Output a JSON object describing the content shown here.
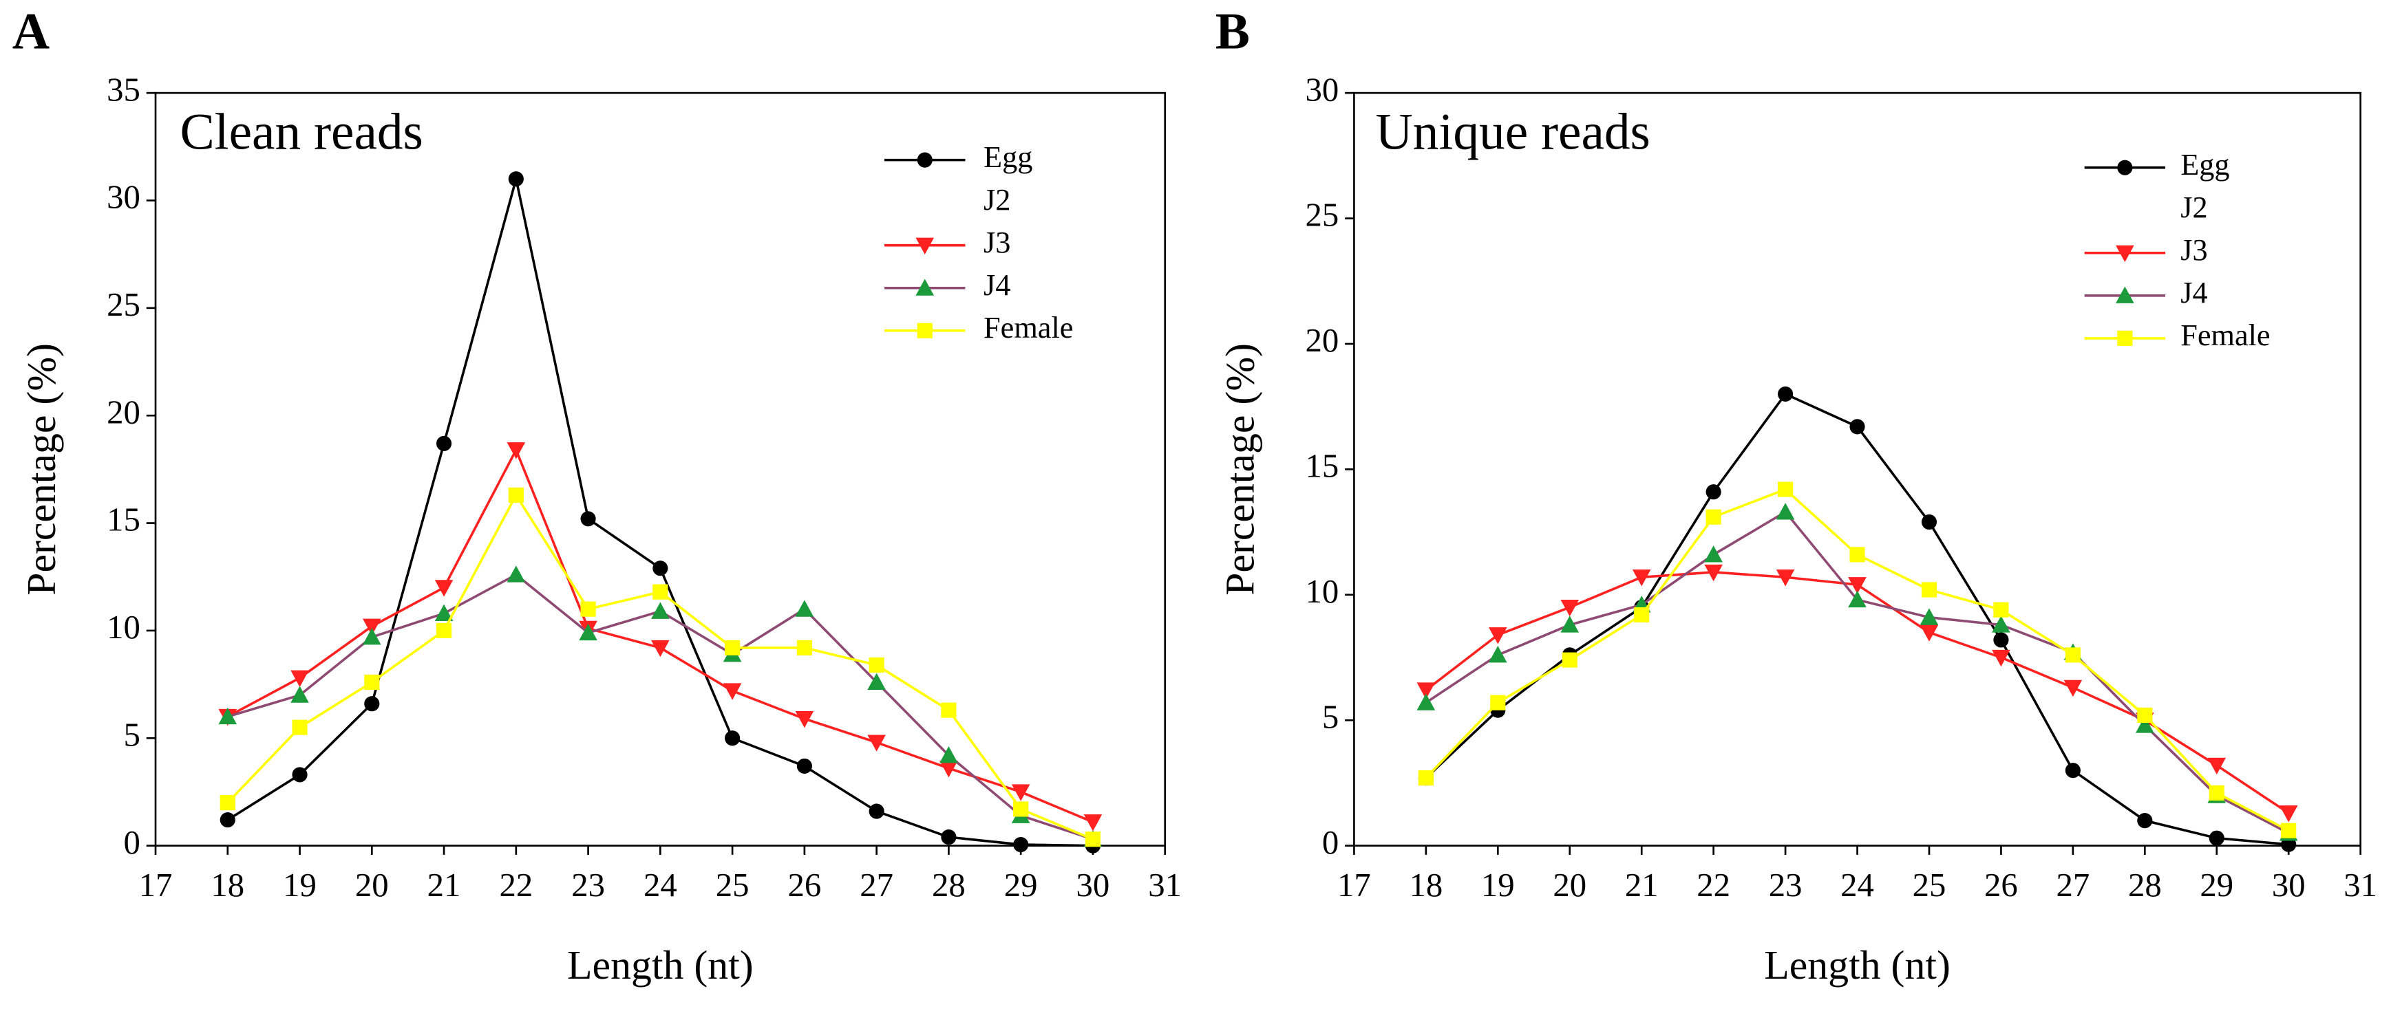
{
  "chart_data": [
    {
      "type": "line",
      "panel": "A",
      "title": "Clean reads",
      "xlabel": "Length (nt)",
      "ylabel": "Percentage (%)",
      "x": [
        18,
        19,
        20,
        21,
        22,
        23,
        24,
        25,
        26,
        27,
        28,
        29,
        30
      ],
      "xlim": [
        17,
        31
      ],
      "xticks": [
        17,
        18,
        19,
        20,
        21,
        22,
        23,
        24,
        25,
        26,
        27,
        28,
        29,
        30,
        31
      ],
      "ylim": [
        0,
        35
      ],
      "yticks": [
        0,
        5,
        10,
        15,
        20,
        25,
        30,
        35
      ],
      "legend": "upper right",
      "series": [
        {
          "name": "Egg",
          "color": "#000000",
          "marker_color": "#000000",
          "marker": "circle",
          "values": [
            1.2,
            3.3,
            6.6,
            18.7,
            31.0,
            15.2,
            12.9,
            5.0,
            3.7,
            1.6,
            0.4,
            0.05,
            0.0
          ]
        },
        {
          "name": "J2",
          "color": "#ffffff",
          "marker_color": "#ffffff",
          "marker": "none",
          "values": [
            null,
            null,
            null,
            null,
            null,
            null,
            null,
            null,
            null,
            null,
            null,
            null,
            null
          ]
        },
        {
          "name": "J3",
          "color": "#ff2020",
          "marker_color": "#ff2020",
          "marker": "triangle-down",
          "values": [
            6.0,
            7.8,
            10.2,
            12.0,
            18.4,
            10.1,
            9.2,
            7.2,
            5.9,
            4.8,
            3.6,
            2.5,
            1.1
          ]
        },
        {
          "name": "J4",
          "color": "#8e4a72",
          "marker_color": "#1a9a3a",
          "marker": "triangle-up",
          "values": [
            6.0,
            7.0,
            9.7,
            10.8,
            12.6,
            9.9,
            10.9,
            8.9,
            11.0,
            7.6,
            4.2,
            1.4,
            0.3
          ]
        },
        {
          "name": "Female",
          "color": "#ffff00",
          "marker_color": "#ffff00",
          "marker": "square",
          "values": [
            2.0,
            5.5,
            7.6,
            10.0,
            16.3,
            11.0,
            11.8,
            9.2,
            9.2,
            8.4,
            6.3,
            1.7,
            0.3
          ]
        }
      ]
    },
    {
      "type": "line",
      "panel": "B",
      "title": "Unique reads",
      "xlabel": "Length (nt)",
      "ylabel": "Percentage (%)",
      "x": [
        18,
        19,
        20,
        21,
        22,
        23,
        24,
        25,
        26,
        27,
        28,
        29,
        30
      ],
      "xlim": [
        17,
        31
      ],
      "xticks": [
        17,
        18,
        19,
        20,
        21,
        22,
        23,
        24,
        25,
        26,
        27,
        28,
        29,
        30,
        31
      ],
      "ylim": [
        0,
        30
      ],
      "yticks": [
        0,
        5,
        10,
        15,
        20,
        25,
        30
      ],
      "legend": "upper right",
      "series": [
        {
          "name": "Egg",
          "color": "#000000",
          "marker_color": "#000000",
          "marker": "circle",
          "values": [
            2.7,
            5.4,
            7.6,
            9.5,
            14.1,
            18.0,
            16.7,
            12.9,
            8.2,
            3.0,
            1.0,
            0.3,
            0.05
          ]
        },
        {
          "name": "J2",
          "color": "#ffffff",
          "marker_color": "#ffffff",
          "marker": "none",
          "values": [
            null,
            null,
            null,
            null,
            null,
            null,
            null,
            null,
            null,
            null,
            null,
            null,
            null
          ]
        },
        {
          "name": "J3",
          "color": "#ff2020",
          "marker_color": "#ff2020",
          "marker": "triangle-down",
          "values": [
            6.2,
            8.4,
            9.5,
            10.7,
            10.9,
            10.7,
            10.4,
            8.5,
            7.5,
            6.3,
            5.0,
            3.2,
            1.3
          ]
        },
        {
          "name": "J4",
          "color": "#8e4a72",
          "marker_color": "#1a9a3a",
          "marker": "triangle-up",
          "values": [
            5.7,
            7.6,
            8.8,
            9.6,
            11.6,
            13.3,
            9.8,
            9.1,
            8.8,
            7.7,
            4.8,
            2.0,
            0.5
          ]
        },
        {
          "name": "Female",
          "color": "#ffff00",
          "marker_color": "#ffff00",
          "marker": "square",
          "values": [
            2.7,
            5.7,
            7.4,
            9.2,
            13.1,
            14.2,
            11.6,
            10.2,
            9.4,
            7.6,
            5.2,
            2.1,
            0.6
          ]
        }
      ]
    }
  ]
}
